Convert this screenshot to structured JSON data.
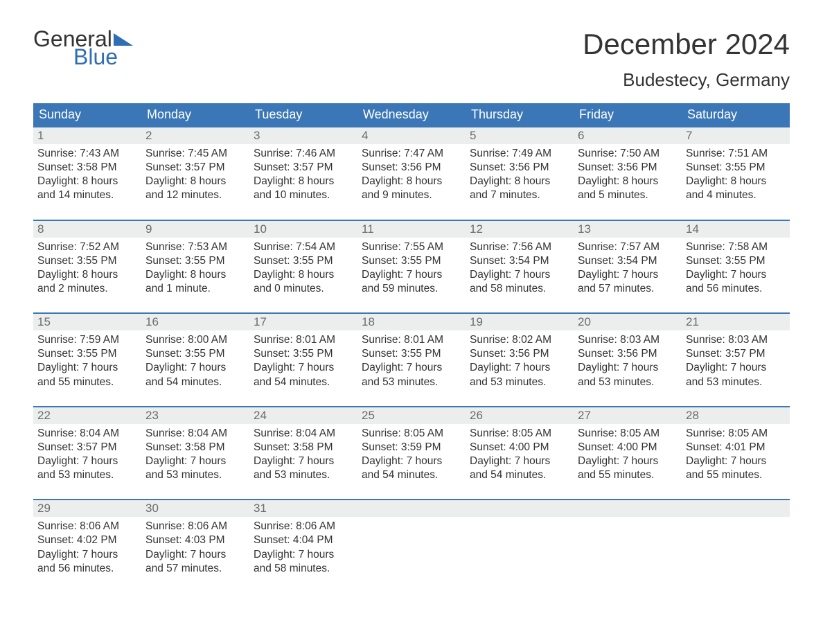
{
  "colors": {
    "header_bg": "#3b77b6",
    "header_text": "#ffffff",
    "daynum_bg": "#eceeee",
    "daynum_text": "#6b6b6b",
    "body_text": "#333333",
    "week_border": "#3b77b6",
    "logo_blue": "#2f6eb5",
    "background": "#ffffff"
  },
  "typography": {
    "month_title_fontsize": 42,
    "location_fontsize": 26,
    "day_header_fontsize": 18,
    "daynum_fontsize": 17,
    "cell_fontsize": 15.5,
    "logo_fontsize": 32,
    "font_family": "Arial"
  },
  "logo": {
    "part1": "General",
    "part2": "Blue"
  },
  "title": "December 2024",
  "location": "Budestecy, Germany",
  "day_headers": [
    "Sunday",
    "Monday",
    "Tuesday",
    "Wednesday",
    "Thursday",
    "Friday",
    "Saturday"
  ],
  "weeks": [
    {
      "nums": [
        "1",
        "2",
        "3",
        "4",
        "5",
        "6",
        "7"
      ],
      "cells": [
        {
          "sunrise": "Sunrise: 7:43 AM",
          "sunset": "Sunset: 3:58 PM",
          "dl1": "Daylight: 8 hours",
          "dl2": "and 14 minutes."
        },
        {
          "sunrise": "Sunrise: 7:45 AM",
          "sunset": "Sunset: 3:57 PM",
          "dl1": "Daylight: 8 hours",
          "dl2": "and 12 minutes."
        },
        {
          "sunrise": "Sunrise: 7:46 AM",
          "sunset": "Sunset: 3:57 PM",
          "dl1": "Daylight: 8 hours",
          "dl2": "and 10 minutes."
        },
        {
          "sunrise": "Sunrise: 7:47 AM",
          "sunset": "Sunset: 3:56 PM",
          "dl1": "Daylight: 8 hours",
          "dl2": "and 9 minutes."
        },
        {
          "sunrise": "Sunrise: 7:49 AM",
          "sunset": "Sunset: 3:56 PM",
          "dl1": "Daylight: 8 hours",
          "dl2": "and 7 minutes."
        },
        {
          "sunrise": "Sunrise: 7:50 AM",
          "sunset": "Sunset: 3:56 PM",
          "dl1": "Daylight: 8 hours",
          "dl2": "and 5 minutes."
        },
        {
          "sunrise": "Sunrise: 7:51 AM",
          "sunset": "Sunset: 3:55 PM",
          "dl1": "Daylight: 8 hours",
          "dl2": "and 4 minutes."
        }
      ]
    },
    {
      "nums": [
        "8",
        "9",
        "10",
        "11",
        "12",
        "13",
        "14"
      ],
      "cells": [
        {
          "sunrise": "Sunrise: 7:52 AM",
          "sunset": "Sunset: 3:55 PM",
          "dl1": "Daylight: 8 hours",
          "dl2": "and 2 minutes."
        },
        {
          "sunrise": "Sunrise: 7:53 AM",
          "sunset": "Sunset: 3:55 PM",
          "dl1": "Daylight: 8 hours",
          "dl2": "and 1 minute."
        },
        {
          "sunrise": "Sunrise: 7:54 AM",
          "sunset": "Sunset: 3:55 PM",
          "dl1": "Daylight: 8 hours",
          "dl2": "and 0 minutes."
        },
        {
          "sunrise": "Sunrise: 7:55 AM",
          "sunset": "Sunset: 3:55 PM",
          "dl1": "Daylight: 7 hours",
          "dl2": "and 59 minutes."
        },
        {
          "sunrise": "Sunrise: 7:56 AM",
          "sunset": "Sunset: 3:54 PM",
          "dl1": "Daylight: 7 hours",
          "dl2": "and 58 minutes."
        },
        {
          "sunrise": "Sunrise: 7:57 AM",
          "sunset": "Sunset: 3:54 PM",
          "dl1": "Daylight: 7 hours",
          "dl2": "and 57 minutes."
        },
        {
          "sunrise": "Sunrise: 7:58 AM",
          "sunset": "Sunset: 3:55 PM",
          "dl1": "Daylight: 7 hours",
          "dl2": "and 56 minutes."
        }
      ]
    },
    {
      "nums": [
        "15",
        "16",
        "17",
        "18",
        "19",
        "20",
        "21"
      ],
      "cells": [
        {
          "sunrise": "Sunrise: 7:59 AM",
          "sunset": "Sunset: 3:55 PM",
          "dl1": "Daylight: 7 hours",
          "dl2": "and 55 minutes."
        },
        {
          "sunrise": "Sunrise: 8:00 AM",
          "sunset": "Sunset: 3:55 PM",
          "dl1": "Daylight: 7 hours",
          "dl2": "and 54 minutes."
        },
        {
          "sunrise": "Sunrise: 8:01 AM",
          "sunset": "Sunset: 3:55 PM",
          "dl1": "Daylight: 7 hours",
          "dl2": "and 54 minutes."
        },
        {
          "sunrise": "Sunrise: 8:01 AM",
          "sunset": "Sunset: 3:55 PM",
          "dl1": "Daylight: 7 hours",
          "dl2": "and 53 minutes."
        },
        {
          "sunrise": "Sunrise: 8:02 AM",
          "sunset": "Sunset: 3:56 PM",
          "dl1": "Daylight: 7 hours",
          "dl2": "and 53 minutes."
        },
        {
          "sunrise": "Sunrise: 8:03 AM",
          "sunset": "Sunset: 3:56 PM",
          "dl1": "Daylight: 7 hours",
          "dl2": "and 53 minutes."
        },
        {
          "sunrise": "Sunrise: 8:03 AM",
          "sunset": "Sunset: 3:57 PM",
          "dl1": "Daylight: 7 hours",
          "dl2": "and 53 minutes."
        }
      ]
    },
    {
      "nums": [
        "22",
        "23",
        "24",
        "25",
        "26",
        "27",
        "28"
      ],
      "cells": [
        {
          "sunrise": "Sunrise: 8:04 AM",
          "sunset": "Sunset: 3:57 PM",
          "dl1": "Daylight: 7 hours",
          "dl2": "and 53 minutes."
        },
        {
          "sunrise": "Sunrise: 8:04 AM",
          "sunset": "Sunset: 3:58 PM",
          "dl1": "Daylight: 7 hours",
          "dl2": "and 53 minutes."
        },
        {
          "sunrise": "Sunrise: 8:04 AM",
          "sunset": "Sunset: 3:58 PM",
          "dl1": "Daylight: 7 hours",
          "dl2": "and 53 minutes."
        },
        {
          "sunrise": "Sunrise: 8:05 AM",
          "sunset": "Sunset: 3:59 PM",
          "dl1": "Daylight: 7 hours",
          "dl2": "and 54 minutes."
        },
        {
          "sunrise": "Sunrise: 8:05 AM",
          "sunset": "Sunset: 4:00 PM",
          "dl1": "Daylight: 7 hours",
          "dl2": "and 54 minutes."
        },
        {
          "sunrise": "Sunrise: 8:05 AM",
          "sunset": "Sunset: 4:00 PM",
          "dl1": "Daylight: 7 hours",
          "dl2": "and 55 minutes."
        },
        {
          "sunrise": "Sunrise: 8:05 AM",
          "sunset": "Sunset: 4:01 PM",
          "dl1": "Daylight: 7 hours",
          "dl2": "and 55 minutes."
        }
      ]
    },
    {
      "nums": [
        "29",
        "30",
        "31",
        "",
        "",
        "",
        ""
      ],
      "cells": [
        {
          "sunrise": "Sunrise: 8:06 AM",
          "sunset": "Sunset: 4:02 PM",
          "dl1": "Daylight: 7 hours",
          "dl2": "and 56 minutes."
        },
        {
          "sunrise": "Sunrise: 8:06 AM",
          "sunset": "Sunset: 4:03 PM",
          "dl1": "Daylight: 7 hours",
          "dl2": "and 57 minutes."
        },
        {
          "sunrise": "Sunrise: 8:06 AM",
          "sunset": "Sunset: 4:04 PM",
          "dl1": "Daylight: 7 hours",
          "dl2": "and 58 minutes."
        },
        {},
        {},
        {},
        {}
      ]
    }
  ]
}
